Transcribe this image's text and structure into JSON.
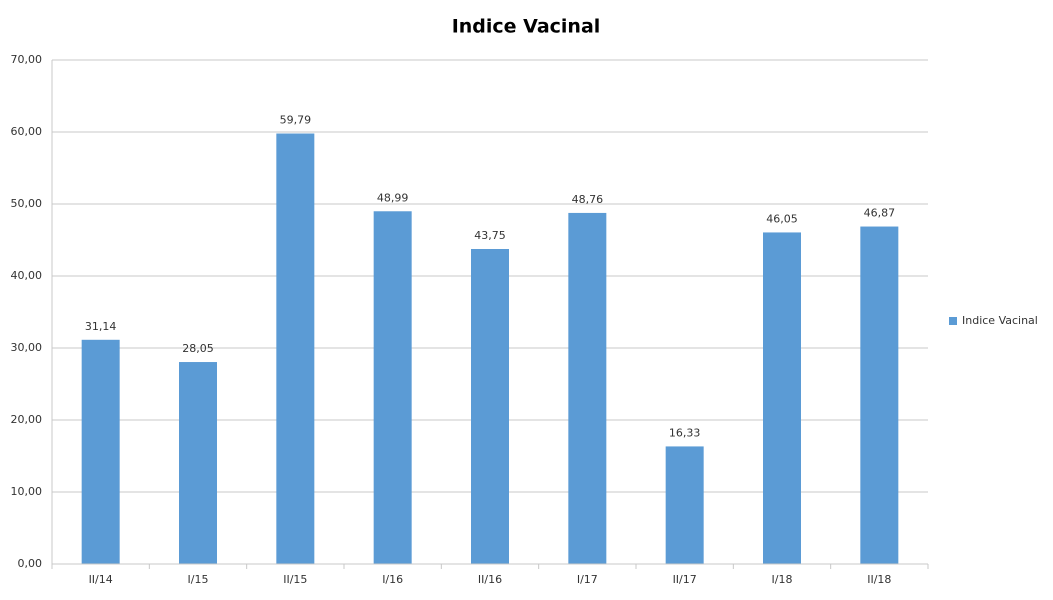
{
  "chart_data": {
    "type": "bar",
    "title": "Indice Vacinal",
    "categories": [
      "II/14",
      "I/15",
      "II/15",
      "I/16",
      "II/16",
      "I/17",
      "II/17",
      "I/18",
      "II/18"
    ],
    "series": [
      {
        "name": "Indice Vacinal",
        "color": "#5b9bd5",
        "values": [
          31.14,
          28.05,
          59.79,
          48.99,
          43.75,
          48.76,
          16.33,
          46.05,
          46.87
        ],
        "value_labels": [
          "31,14",
          "28,05",
          "59,79",
          "48,99",
          "43,75",
          "48,76",
          "16,33",
          "46,05",
          "46,87"
        ]
      }
    ],
    "ylim": [
      0,
      70
    ],
    "yticks": [
      {
        "value": 0,
        "label": "0,00"
      },
      {
        "value": 10,
        "label": "10,00"
      },
      {
        "value": 20,
        "label": "20,00"
      },
      {
        "value": 30,
        "label": "30,00"
      },
      {
        "value": 40,
        "label": "40,00"
      },
      {
        "value": 50,
        "label": "50,00"
      },
      {
        "value": 60,
        "label": "60,00"
      },
      {
        "value": 70,
        "label": "70,00"
      }
    ],
    "grid": true,
    "legend": "right"
  }
}
